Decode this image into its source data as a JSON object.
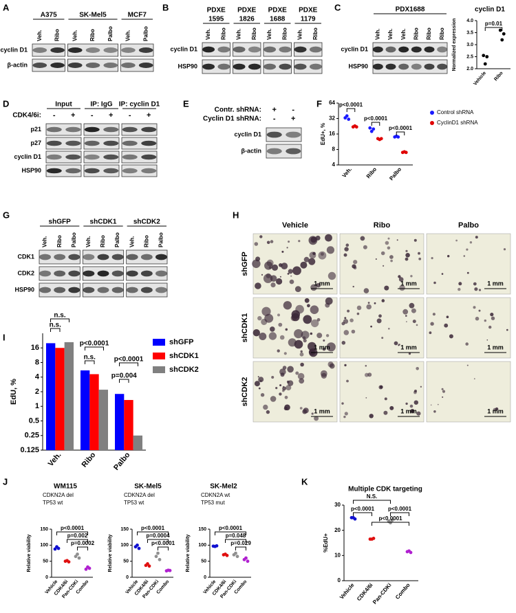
{
  "panel_labels": [
    "A",
    "B",
    "C",
    "D",
    "E",
    "F",
    "G",
    "H",
    "I",
    "J",
    "K"
  ],
  "blots": [
    {
      "groups": [
        {
          "name": [
            "A375"
          ],
          "lanes": [
            "Veh.",
            "Ribo"
          ]
        },
        {
          "name": [
            "SK-Mel5"
          ],
          "lanes": [
            "Veh.",
            "Ribo",
            "Palbo"
          ]
        },
        {
          "name": [
            "MCF7"
          ],
          "lanes": [
            "Veh.",
            "Palbo"
          ]
        }
      ],
      "rows": [
        "cyclin D1",
        "β-actin"
      ]
    },
    {
      "groups": [
        {
          "name": [
            "PDXE",
            "1595"
          ],
          "lanes": [
            "Veh.",
            "Ribo"
          ]
        },
        {
          "name": [
            "PDXE",
            "1826"
          ],
          "lanes": [
            "Veh.",
            "Ribo"
          ]
        },
        {
          "name": [
            "PDXE",
            "1688"
          ],
          "lanes": [
            "Veh.",
            "Ribo"
          ]
        },
        {
          "name": [
            "PDXE",
            "1179"
          ],
          "lanes": [
            "Veh.",
            "Ribo"
          ]
        }
      ],
      "rows": [
        "cyclin D1",
        "HSP90"
      ]
    },
    {
      "groups": [
        {
          "name": [
            "PDX1688"
          ],
          "lanes": [
            "Veh.",
            "Veh.",
            "Veh.",
            "Ribo",
            "Ribo",
            "Ribo"
          ]
        }
      ],
      "rows": [
        "cyclin D1",
        "HSP90"
      ]
    },
    {
      "groups": [
        {
          "name": [
            "Input"
          ]
        },
        {
          "name": [
            "IP: IgG"
          ]
        },
        {
          "name": [
            "IP: cyclin D1"
          ]
        }
      ],
      "treatments": [
        {
          "label": "CDK4/6i:",
          "color": "#000000",
          "values": [
            "-",
            "+",
            "-",
            "+",
            "-",
            "+"
          ]
        }
      ],
      "rows": [
        "p21",
        "p27",
        "cyclin D1",
        "HSP90"
      ]
    },
    {
      "treatments": [
        {
          "label": "Contr. shRNA:",
          "color": "#1a1aff",
          "values": [
            "+",
            "-"
          ]
        },
        {
          "label": "Cyclin D1 shRNA:",
          "color": "#e00000",
          "values": [
            "-",
            "+"
          ]
        }
      ],
      "rows": [
        "cyclin D1",
        "β-actin"
      ]
    },
    {
      "groups": [
        {
          "name": [
            "shGFP"
          ],
          "lanes": [
            "Veh.",
            "Ribo",
            "Palbo"
          ]
        },
        {
          "name": [
            "shCDK1"
          ],
          "lanes": [
            "Veh.",
            "Ribo",
            "Palbo"
          ]
        },
        {
          "name": [
            "shCDK2"
          ],
          "lanes": [
            "Veh.",
            "Ribo",
            "Palbo"
          ]
        }
      ],
      "rows": [
        "CDK1",
        "CDK2",
        "HSP90"
      ]
    }
  ],
  "micrographs": {
    "columns": [
      "Vehicle",
      "Ribo",
      "Palbo"
    ],
    "rows": [
      "shGFP",
      "shCDK1",
      "shCDK2"
    ],
    "scale_bar": "1 mm"
  },
  "chart_data": [
    {
      "type": "dot",
      "title": "cyclin D1",
      "y_label": "Normalized expression",
      "categories": [
        "Vehicle",
        "Ribo"
      ],
      "colors": [
        "#000000",
        "#000000"
      ],
      "values": [
        [
          2.55,
          2.2,
          2.5
        ],
        [
          3.6,
          3.2,
          3.45
        ]
      ],
      "ylim": [
        2.0,
        4.0
      ],
      "yticks": [
        {
          "value": 2,
          "label": "2.0"
        },
        {
          "value": 2.5,
          "label": "2.5"
        },
        {
          "value": 3,
          "label": "3.0"
        },
        {
          "value": 3.5,
          "label": "3.5"
        },
        {
          "value": 4,
          "label": "4.0"
        }
      ],
      "annotations": [
        "p=0.01"
      ]
    },
    {
      "type": "dot",
      "y_label": "EdU+, %",
      "categories": [
        "Veh.",
        "Ribo",
        "Palbo"
      ],
      "series": [
        {
          "name": "Control shRNA",
          "color": "#1a1aff",
          "values": [
            [
              33,
              36,
              31
            ],
            [
              21,
              18,
              20
            ],
            [
              14,
              14.5,
              14
            ]
          ]
        },
        {
          "name": "CyclinD1 shRNA",
          "color": "#e00000",
          "values": [
            [
              22,
              23,
              22
            ],
            [
              13,
              12.5,
              13
            ],
            [
              7,
              7.2,
              7
            ]
          ]
        }
      ],
      "log_scale": true,
      "ylim": [
        4,
        64
      ],
      "yticks": [
        4,
        8,
        16,
        32,
        64
      ],
      "annotations": [
        "p<0.0001",
        "p<0.0001",
        "p<0.0001"
      ],
      "legend": "right"
    },
    {
      "type": "bar",
      "y_label": "EdU, %",
      "categories": [
        "Veh.",
        "Ribo",
        "Palbo"
      ],
      "series": [
        {
          "name": "shGFP",
          "color": "#0000ff",
          "values": [
            20,
            5.5,
            1.8
          ]
        },
        {
          "name": "shCDK1",
          "color": "#ff0000",
          "values": [
            16,
            4.6,
            1.35
          ]
        },
        {
          "name": "shCDK2",
          "color": "#808080",
          "values": [
            21,
            2.2,
            0.25
          ]
        }
      ],
      "log_scale": true,
      "ylim": [
        0.125,
        32
      ],
      "yticks": [
        0.125,
        0.25,
        0.5,
        1,
        2,
        4,
        8,
        16
      ],
      "annotations": [
        "n.s.",
        "n.s.",
        "p<0.0001",
        "n.s.",
        "p<0.0001",
        "p=0.004"
      ],
      "legend": "right"
    },
    {
      "type": "dot",
      "title": "WM115",
      "subtitle": [
        "CDKN2A del",
        "TP53 wt"
      ],
      "subtitle_color": "#1f4e9c",
      "y_label": "Relative viability",
      "categories": [
        "Vehicle",
        "CDK4/6i",
        "Pan-CDKi",
        "Combo"
      ],
      "colors": [
        "#1010d0",
        "#e01010",
        "#909090",
        "#b020d0"
      ],
      "values": [
        [
          88,
          95,
          90
        ],
        [
          50,
          52,
          48
        ],
        [
          65,
          72,
          60
        ],
        [
          25,
          32,
          28
        ]
      ],
      "ylim": [
        0,
        150
      ],
      "yticks": [
        0,
        50,
        100,
        150
      ],
      "annotations": [
        "p<0.0001",
        "p=0.002",
        "p=0.0002"
      ]
    },
    {
      "type": "dot",
      "title": "SK-Mel5",
      "subtitle": [
        "CDKN2A del",
        "TP53 wt"
      ],
      "subtitle_color": "#1f4e9c",
      "y_label": "Relative viability",
      "categories": [
        "Vehicle",
        "CDK4/6i",
        "Pan-CDKi",
        "Combo"
      ],
      "colors": [
        "#1010d0",
        "#e01010",
        "#909090",
        "#b020d0"
      ],
      "values": [
        [
          95,
          100,
          90
        ],
        [
          37,
          42,
          35
        ],
        [
          65,
          75,
          55
        ],
        [
          20,
          22,
          21
        ]
      ],
      "ylim": [
        0,
        150
      ],
      "yticks": [
        0,
        50,
        100,
        150
      ],
      "annotations": [
        "p<0.0001",
        "p=0.0004",
        "p<0.0001"
      ]
    },
    {
      "type": "dot",
      "title": "SK-Mel2",
      "subtitle": [
        "CDKN2A wt",
        "TP53 mut"
      ],
      "subtitle_color": "#1f4e9c",
      "y_label": "Relative viability",
      "categories": [
        "Vehicle",
        "CDK4/6i",
        "Pan-CDKi",
        "Combo"
      ],
      "colors": [
        "#1010d0",
        "#e01010",
        "#909090",
        "#b020d0"
      ],
      "values": [
        [
          97,
          96,
          98
        ],
        [
          70,
          72,
          68
        ],
        [
          70,
          75,
          65
        ],
        [
          55,
          60,
          50
        ]
      ],
      "ylim": [
        0,
        150
      ],
      "yticks": [
        0,
        50,
        100,
        150
      ],
      "annotations": [
        "p<0.0001",
        "p=0.048",
        "p=0.029"
      ]
    },
    {
      "type": "dot",
      "title": "Multiple CDK targeting",
      "y_label": "%EdU+",
      "categories": [
        "Vehicle",
        "CDK4/6i",
        "Pan-CDKi",
        "Combo"
      ],
      "colors": [
        "#1010d0",
        "#e01010",
        "#909090",
        "#b020d0"
      ],
      "values": [
        [
          25,
          25,
          24.5
        ],
        [
          16.5,
          16.5,
          16.8
        ],
        [
          23.5,
          23,
          24
        ],
        [
          11.5,
          11.8,
          11.2
        ]
      ],
      "ylim": [
        0,
        30
      ],
      "yticks": [
        0,
        10,
        20,
        30
      ],
      "annotations": [
        "N.S.",
        "p<0.0001",
        "p<0.0001",
        "p<0.0001"
      ]
    }
  ]
}
